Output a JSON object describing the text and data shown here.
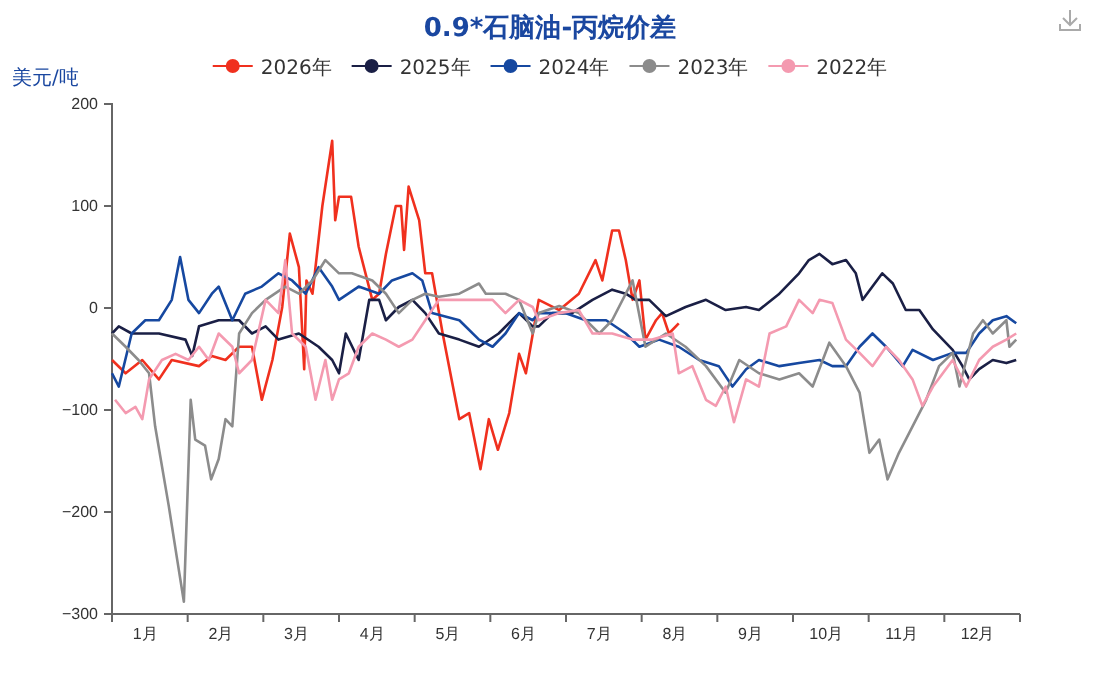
{
  "chart_data": {
    "type": "line",
    "title": "0.9*石脑油-丙烷价差",
    "ylabel": "美元/吨",
    "legend": "top",
    "grid": false,
    "xlim": [
      0.62,
      12.62
    ],
    "xticks": [
      {
        "value": 1,
        "label": "1月"
      },
      {
        "value": 2,
        "label": "2月"
      },
      {
        "value": 3,
        "label": "3月"
      },
      {
        "value": 4,
        "label": "4月"
      },
      {
        "value": 5,
        "label": "5月"
      },
      {
        "value": 6,
        "label": "6月"
      },
      {
        "value": 7,
        "label": "7月"
      },
      {
        "value": 8,
        "label": "8月"
      },
      {
        "value": 9,
        "label": "9月"
      },
      {
        "value": 10,
        "label": "10月"
      },
      {
        "value": 11,
        "label": "11月"
      },
      {
        "value": 12,
        "label": "12月"
      }
    ],
    "ylim": [
      -300,
      200
    ],
    "yticks": [
      -300,
      -200,
      -100,
      0,
      100,
      200
    ],
    "series": [
      {
        "name": "2026年",
        "color": "#f0301e",
        "x": [
          0.62,
          0.8,
          1.02,
          1.24,
          1.41,
          1.77,
          1.94,
          2.12,
          2.3,
          2.47,
          2.6,
          2.74,
          2.87,
          2.97,
          3.09,
          3.16,
          3.19,
          3.27,
          3.4,
          3.53,
          3.57,
          3.62,
          3.78,
          3.88,
          4.06,
          4.15,
          4.24,
          4.37,
          4.44,
          4.48,
          4.54,
          4.68,
          4.76,
          4.85,
          4.99,
          5.21,
          5.34,
          5.49,
          5.6,
          5.72,
          5.87,
          6.0,
          6.09,
          6.26,
          6.53,
          6.79,
          7.01,
          7.1,
          7.23,
          7.32,
          7.41,
          7.5,
          7.59,
          7.67,
          7.81,
          7.89,
          7.98,
          8.11
        ],
        "values": [
          -51,
          -64,
          -51,
          -70,
          -51,
          -57,
          -47,
          -51,
          -38,
          -38,
          -90,
          -51,
          1,
          73,
          40,
          -60,
          27,
          14,
          100,
          164,
          86,
          109,
          109,
          60,
          8,
          14,
          53,
          100,
          100,
          57,
          119,
          86,
          34,
          34,
          -25,
          -109,
          -103,
          -158,
          -109,
          -139,
          -103,
          -45,
          -64,
          8,
          -2,
          14,
          47,
          27,
          76,
          76,
          47,
          8,
          27,
          -31,
          -12,
          -5,
          -25,
          -15
        ]
      },
      {
        "name": "2025年",
        "color": "#1a1f45",
        "x": [
          0.62,
          0.71,
          0.88,
          1.24,
          1.59,
          1.68,
          1.77,
          2.03,
          2.3,
          2.47,
          2.65,
          2.82,
          3.09,
          3.35,
          3.53,
          3.62,
          3.71,
          3.88,
          4.02,
          4.15,
          4.24,
          4.41,
          4.59,
          4.76,
          4.94,
          5.21,
          5.47,
          5.73,
          6.0,
          6.18,
          6.26,
          6.44,
          6.7,
          6.97,
          7.23,
          7.41,
          7.54,
          7.72,
          7.94,
          8.2,
          8.47,
          8.73,
          9.0,
          9.17,
          9.44,
          9.7,
          9.83,
          9.97,
          10.14,
          10.32,
          10.45,
          10.54,
          10.67,
          10.8,
          10.94,
          11.11,
          11.29,
          11.47,
          11.6,
          11.73,
          11.86,
          11.95,
          12.08,
          12.26,
          12.44,
          12.57
        ],
        "values": [
          -25,
          -18,
          -25,
          -25,
          -31,
          -47,
          -18,
          -12,
          -12,
          -25,
          -18,
          -31,
          -25,
          -38,
          -51,
          -64,
          -25,
          -51,
          8,
          8,
          -12,
          1,
          8,
          -5,
          -25,
          -31,
          -38,
          -25,
          -5,
          -18,
          -18,
          -5,
          -5,
          8,
          18,
          14,
          8,
          8,
          -8,
          1,
          8,
          -2,
          1,
          -2,
          14,
          34,
          47,
          53,
          43,
          47,
          34,
          8,
          21,
          34,
          24,
          -2,
          -2,
          -21,
          -31,
          -41,
          -57,
          -70,
          -60,
          -51,
          -54,
          -51
        ]
      },
      {
        "name": "2024年",
        "color": "#1648a0",
        "x": [
          0.62,
          0.71,
          0.88,
          1.06,
          1.24,
          1.41,
          1.52,
          1.63,
          1.77,
          1.94,
          2.03,
          2.21,
          2.38,
          2.6,
          2.82,
          3.0,
          3.18,
          3.35,
          3.53,
          3.62,
          3.88,
          4.15,
          4.32,
          4.59,
          4.72,
          4.85,
          5.21,
          5.47,
          5.65,
          5.82,
          6.0,
          6.18,
          6.26,
          6.61,
          6.88,
          7.15,
          7.41,
          7.59,
          7.85,
          8.11,
          8.38,
          8.64,
          8.82,
          9.0,
          9.17,
          9.44,
          9.7,
          9.97,
          10.14,
          10.32,
          10.5,
          10.67,
          10.85,
          11.07,
          11.2,
          11.47,
          11.73,
          11.91,
          12.08,
          12.26,
          12.44,
          12.57
        ],
        "values": [
          -64,
          -77,
          -25,
          -12,
          -12,
          8,
          50,
          8,
          -5,
          14,
          21,
          -12,
          14,
          21,
          34,
          27,
          14,
          40,
          21,
          8,
          21,
          14,
          27,
          34,
          27,
          -5,
          -12,
          -31,
          -38,
          -25,
          -5,
          -12,
          -5,
          -5,
          -12,
          -12,
          -25,
          -38,
          -31,
          -38,
          -51,
          -57,
          -77,
          -60,
          -51,
          -57,
          -54,
          -51,
          -57,
          -57,
          -38,
          -25,
          -38,
          -57,
          -41,
          -51,
          -44,
          -44,
          -25,
          -12,
          -8,
          -15
        ]
      },
      {
        "name": "2023年",
        "color": "#8c8c8c",
        "x": [
          0.62,
          0.8,
          0.97,
          1.11,
          1.19,
          1.37,
          1.48,
          1.57,
          1.66,
          1.72,
          1.85,
          1.93,
          2.03,
          2.12,
          2.21,
          2.3,
          2.47,
          2.65,
          2.91,
          3.09,
          3.27,
          3.44,
          3.62,
          3.79,
          4.06,
          4.24,
          4.41,
          4.59,
          4.76,
          4.94,
          5.21,
          5.47,
          5.56,
          5.82,
          6.0,
          6.18,
          6.26,
          6.53,
          6.79,
          7.06,
          7.23,
          7.5,
          7.67,
          7.94,
          8.2,
          8.47,
          8.73,
          8.91,
          9.17,
          9.44,
          9.7,
          9.88,
          10.1,
          10.32,
          10.5,
          10.63,
          10.76,
          10.87,
          11.02,
          11.2,
          11.38,
          11.55,
          11.73,
          11.82,
          12.0,
          12.13,
          12.26,
          12.44,
          12.48,
          12.57
        ],
        "values": [
          -25,
          -38,
          -51,
          -64,
          -116,
          -194,
          -246,
          -288,
          -90,
          -129,
          -135,
          -168,
          -148,
          -109,
          -116,
          -25,
          -5,
          8,
          21,
          14,
          27,
          47,
          34,
          34,
          27,
          14,
          -5,
          8,
          14,
          11,
          14,
          24,
          14,
          14,
          8,
          -25,
          -5,
          2,
          -5,
          -25,
          -12,
          27,
          -38,
          -25,
          -38,
          -57,
          -83,
          -51,
          -64,
          -70,
          -64,
          -77,
          -34,
          -57,
          -83,
          -142,
          -129,
          -168,
          -142,
          -116,
          -90,
          -57,
          -44,
          -77,
          -25,
          -12,
          -25,
          -12,
          -38,
          -31
        ]
      },
      {
        "name": "2022年",
        "color": "#f49ab0",
        "x": [
          0.66,
          0.8,
          0.93,
          1.02,
          1.11,
          1.28,
          1.46,
          1.63,
          1.77,
          1.9,
          2.03,
          2.21,
          2.3,
          2.47,
          2.65,
          2.82,
          2.91,
          3.0,
          3.18,
          3.31,
          3.44,
          3.53,
          3.62,
          3.75,
          3.88,
          4.06,
          4.24,
          4.41,
          4.59,
          4.76,
          4.94,
          5.21,
          5.47,
          5.65,
          5.82,
          6.0,
          6.18,
          6.26,
          6.53,
          6.79,
          6.97,
          7.23,
          7.5,
          7.76,
          8.03,
          8.11,
          8.29,
          8.47,
          8.6,
          8.73,
          8.84,
          9.0,
          9.17,
          9.31,
          9.53,
          9.7,
          9.88,
          9.97,
          10.14,
          10.32,
          10.5,
          10.67,
          10.85,
          11.02,
          11.2,
          11.33,
          11.47,
          11.6,
          11.73,
          11.91,
          12.08,
          12.26,
          12.44,
          12.57
        ],
        "values": [
          -90,
          -103,
          -97,
          -109,
          -70,
          -51,
          -45,
          -51,
          -38,
          -51,
          -25,
          -38,
          -64,
          -51,
          8,
          -5,
          47,
          -25,
          -38,
          -90,
          -51,
          -90,
          -70,
          -64,
          -38,
          -25,
          -31,
          -38,
          -31,
          -12,
          8,
          8,
          8,
          8,
          -5,
          8,
          1,
          -12,
          -5,
          -2,
          -25,
          -25,
          -31,
          -31,
          -25,
          -64,
          -57,
          -90,
          -96,
          -77,
          -112,
          -70,
          -77,
          -25,
          -18,
          8,
          -5,
          8,
          5,
          -31,
          -44,
          -57,
          -38,
          -51,
          -70,
          -96,
          -77,
          -64,
          -51,
          -77,
          -51,
          -38,
          -31,
          -25
        ]
      }
    ]
  }
}
